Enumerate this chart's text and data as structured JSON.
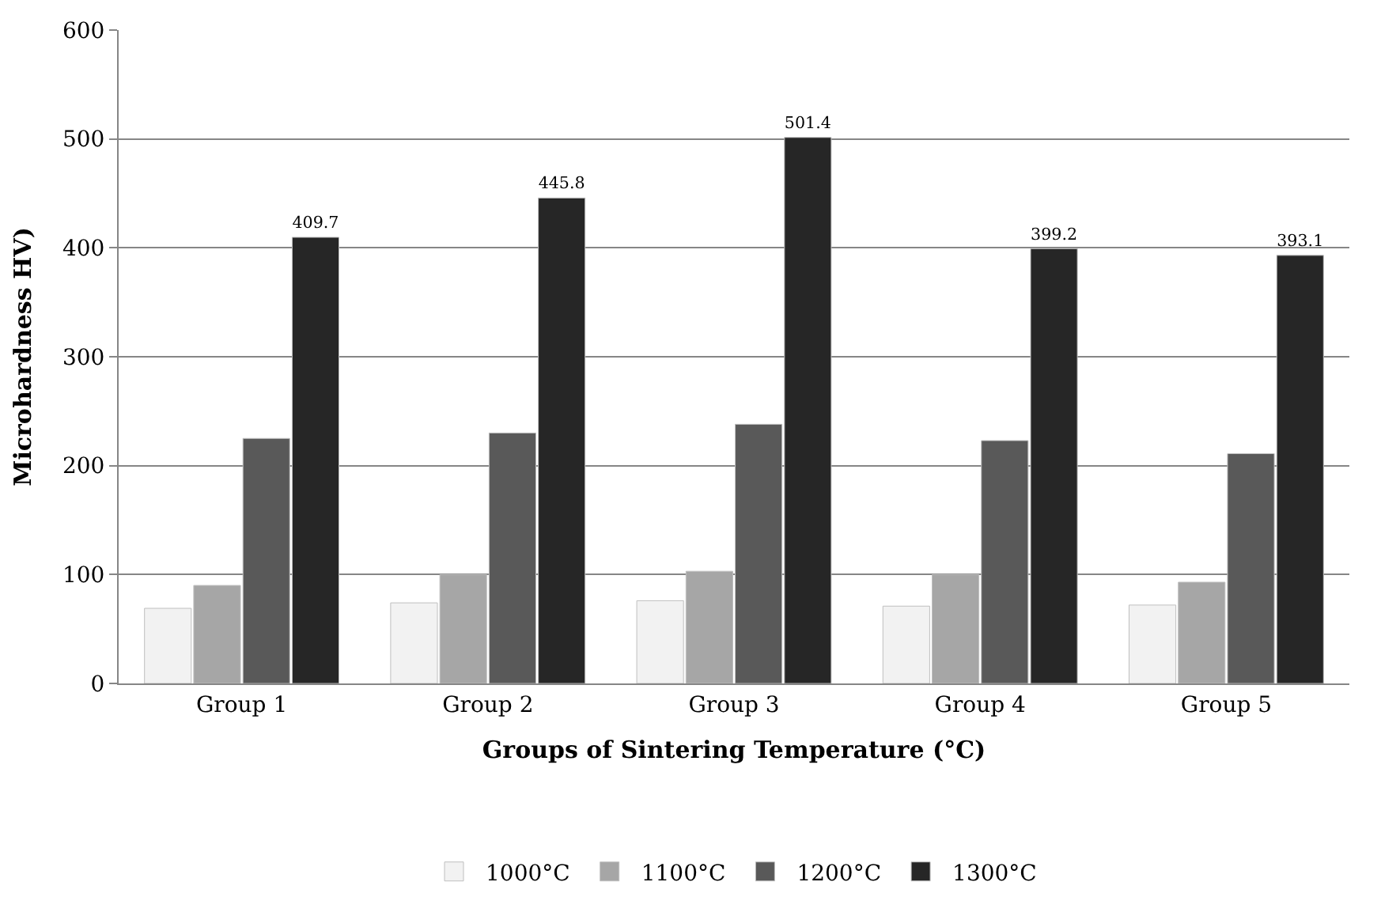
{
  "chart_data": {
    "type": "bar",
    "xlabel": "Groups of Sintering Temperature (°C)",
    "ylabel": "Microhardness HV)",
    "categories": [
      "Group 1",
      "Group 2",
      "Group 3",
      "Group 4",
      "Group 5"
    ],
    "series": [
      {
        "name": "1000°C",
        "color": "#f2f2f2",
        "values": [
          69,
          74,
          76,
          71,
          72
        ]
      },
      {
        "name": "1100°C",
        "color": "#a6a6a6",
        "values": [
          90,
          100,
          103,
          100,
          93
        ]
      },
      {
        "name": "1200°C",
        "color": "#595959",
        "values": [
          225,
          230,
          238,
          223,
          211
        ]
      },
      {
        "name": "1300°C",
        "color": "#262626",
        "values": [
          409.7,
          445.8,
          501.4,
          399.2,
          393.1
        ],
        "value_labels": [
          "409.7",
          "445.8",
          "501.4",
          "399.2",
          "393.1"
        ]
      }
    ],
    "ylim": [
      0,
      600
    ],
    "yticks": [
      0,
      100,
      200,
      300,
      400,
      500,
      600
    ],
    "grid": "y",
    "legend": "bottom"
  }
}
